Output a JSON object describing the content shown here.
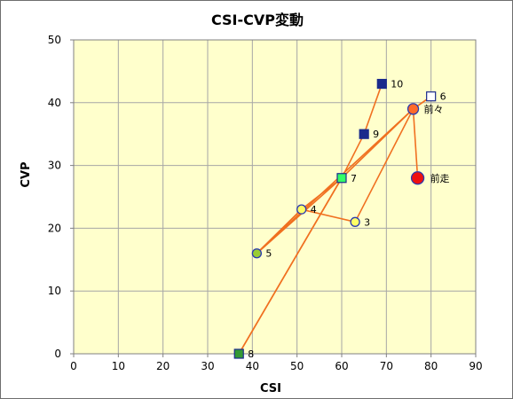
{
  "chart_data": {
    "type": "scatter",
    "title": "CSI-CVP変動",
    "xlabel": "CSI",
    "ylabel": "CVP",
    "xlim": [
      0,
      90
    ],
    "ylim": [
      0,
      50
    ],
    "x_ticks": [
      "0",
      "10",
      "20",
      "30",
      "40",
      "50",
      "60",
      "70",
      "80",
      "90"
    ],
    "y_ticks": [
      "0",
      "10",
      "20",
      "30",
      "40",
      "50"
    ],
    "grid": true,
    "background_color": "#ffffcc",
    "grid_color": "#a6a6a6",
    "line_color": "#f07020",
    "points": [
      {
        "label": "3",
        "x": 63,
        "y": 21,
        "marker": "circle",
        "fill": "#ffff66",
        "stroke": "#2a3ab0",
        "size": 5
      },
      {
        "label": "4",
        "x": 51,
        "y": 23,
        "marker": "circle",
        "fill": "#ffff66",
        "stroke": "#2a3ab0",
        "size": 5
      },
      {
        "label": "5",
        "x": 41,
        "y": 16,
        "marker": "circle",
        "fill": "#99cc33",
        "stroke": "#2a3ab0",
        "size": 5
      },
      {
        "label": "6",
        "x": 80,
        "y": 41,
        "marker": "square",
        "fill": "#ffffff",
        "stroke": "#1a2a8c",
        "size": 5
      },
      {
        "label": "7",
        "x": 60,
        "y": 28,
        "marker": "square",
        "fill": "#33ff66",
        "stroke": "#1a2a8c",
        "size": 5
      },
      {
        "label": "8",
        "x": 37,
        "y": 0,
        "marker": "square",
        "fill": "#339933",
        "stroke": "#1a2a8c",
        "size": 5
      },
      {
        "label": "9",
        "x": 65,
        "y": 35,
        "marker": "square",
        "fill": "#1a2a8c",
        "stroke": "#1a2a8c",
        "size": 5
      },
      {
        "label": "10",
        "x": 69,
        "y": 43,
        "marker": "square",
        "fill": "#1a2a8c",
        "stroke": "#1a2a8c",
        "size": 5
      },
      {
        "label": "前々",
        "x": 76,
        "y": 39,
        "marker": "circle",
        "fill": "#ff6a2a",
        "stroke": "#2a3ab0",
        "size": 6
      },
      {
        "label": "前走",
        "x": 77,
        "y": 28,
        "marker": "circle",
        "fill": "#ee1111",
        "stroke": "#2a3ab0",
        "size": 7
      }
    ],
    "path_order": [
      "10",
      "9",
      "7",
      "8",
      "7",
      "4",
      "5",
      "7",
      "前々",
      "3",
      "4",
      "5",
      "前々",
      "6",
      "前々",
      "前走"
    ]
  }
}
